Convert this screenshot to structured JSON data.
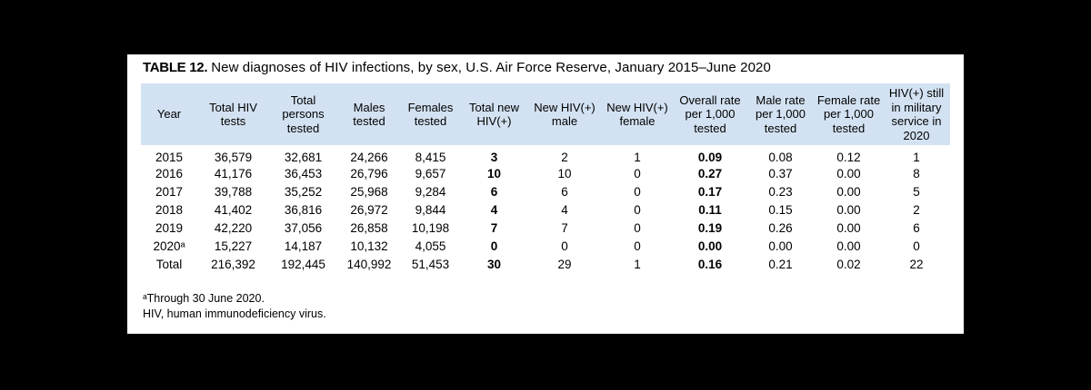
{
  "title": {
    "label": "TABLE 12.",
    "text": "New diagnoses of HIV infections, by sex, U.S. Air Force Reserve, January 2015–June 2020"
  },
  "colors": {
    "header_band": "#d3e2f2",
    "panel_background": "#ffffff",
    "page_background": "#000000",
    "text": "#000000"
  },
  "table": {
    "columns": [
      {
        "id": "year",
        "label": "Year"
      },
      {
        "id": "total-hiv-tests",
        "label": "Total HIV tests"
      },
      {
        "id": "total-persons-tested",
        "label": "Total persons tested"
      },
      {
        "id": "males-tested",
        "label": "Males tested"
      },
      {
        "id": "females-tested",
        "label": "Females tested"
      },
      {
        "id": "total-new-hiv-positive",
        "label": "Total new HIV(+)"
      },
      {
        "id": "new-hiv-positive-male",
        "label": "New HIV(+) male"
      },
      {
        "id": "new-hiv-positive-female",
        "label": "New HIV(+) female"
      },
      {
        "id": "overall-rate-per-1000-tested",
        "label": "Overall rate per 1,000 tested"
      },
      {
        "id": "male-rate-per-1000-tested",
        "label": "Male rate per 1,000 tested"
      },
      {
        "id": "female-rate-per-1000-tested",
        "label": "Female rate per 1,000 tested"
      },
      {
        "id": "hiv-positive-still-in-military-service-2020",
        "label": "HIV(+) still in military service in 2020"
      }
    ],
    "bold_columns": [
      5,
      8
    ],
    "rows": [
      {
        "cells": [
          "2015",
          "36,579",
          "32,681",
          "24,266",
          "8,415",
          "3",
          "2",
          "1",
          "0.09",
          "0.08",
          "0.12",
          "1"
        ]
      },
      {
        "cells": [
          "2016",
          "41,176",
          "36,453",
          "26,796",
          "9,657",
          "10",
          "10",
          "0",
          "0.27",
          "0.37",
          "0.00",
          "8"
        ]
      },
      {
        "cells": [
          "2017",
          "39,788",
          "35,252",
          "25,968",
          "9,284",
          "6",
          "6",
          "0",
          "0.17",
          "0.23",
          "0.00",
          "5"
        ]
      },
      {
        "cells": [
          "2018",
          "41,402",
          "36,816",
          "26,972",
          "9,844",
          "4",
          "4",
          "0",
          "0.11",
          "0.15",
          "0.00",
          "2"
        ]
      },
      {
        "cells": [
          "2019",
          "42,220",
          "37,056",
          "26,858",
          "10,198",
          "7",
          "7",
          "0",
          "0.19",
          "0.26",
          "0.00",
          "6"
        ]
      },
      {
        "cells": [
          "2020ᵃ",
          "15,227",
          "14,187",
          "10,132",
          "4,055",
          "0",
          "0",
          "0",
          "0.00",
          "0.00",
          "0.00",
          "0"
        ]
      },
      {
        "cells": [
          "Total",
          "216,392",
          "192,445",
          "140,992",
          "51,453",
          "30",
          "29",
          "1",
          "0.16",
          "0.21",
          "0.02",
          "22"
        ]
      }
    ]
  },
  "footnotes": {
    "line1": "ᵃThrough 30 June 2020.",
    "line2": "HIV, human immunodeficiency virus."
  }
}
